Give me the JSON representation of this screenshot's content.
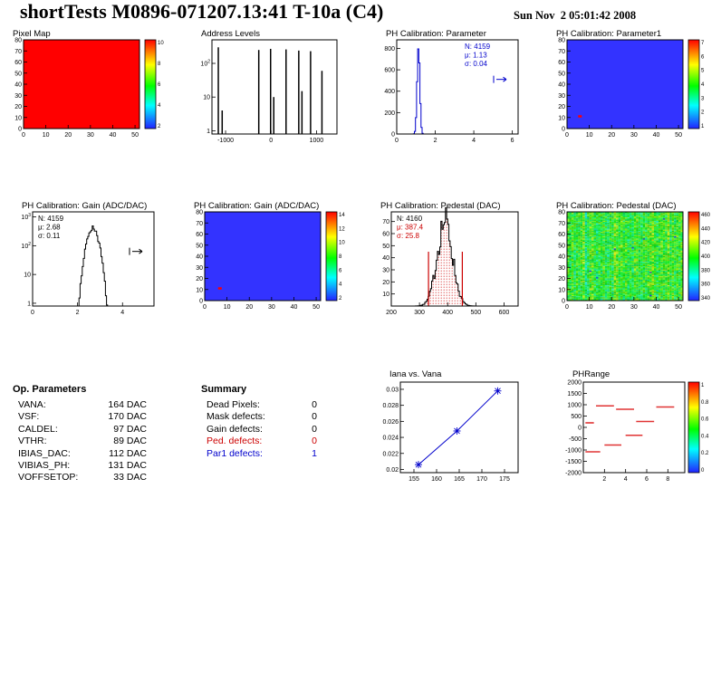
{
  "header": {
    "title": "shortTests M0896-071207.13:41 T-10a (C4)",
    "date": "Sun Nov  2 05:01:42 2008"
  },
  "op_parameters": {
    "heading": "Op. Parameters",
    "rows": [
      [
        "VANA:",
        "164 DAC"
      ],
      [
        "VSF:",
        "170 DAC"
      ],
      [
        "CALDEL:",
        "97 DAC"
      ],
      [
        "VTHR:",
        "89 DAC"
      ],
      [
        "IBIAS_DAC:",
        "112 DAC"
      ],
      [
        "VIBIAS_PH:",
        "131 DAC"
      ],
      [
        "VOFFSETOP:",
        "33 DAC"
      ]
    ]
  },
  "summary": {
    "heading": "Summary",
    "rows": [
      {
        "label": "Dead Pixels:",
        "value": "0",
        "color": "black"
      },
      {
        "label": "Mask defects:",
        "value": "0",
        "color": "black"
      },
      {
        "label": "Gain defects:",
        "value": "0",
        "color": "black"
      },
      {
        "label": "Ped. defects:",
        "value": "0",
        "color": "red"
      },
      {
        "label": "Par1 defects:",
        "value": "1",
        "color": "blue"
      }
    ]
  },
  "colors": {
    "accent_blue": "#0000cc",
    "accent_red": "#cc0000",
    "map_blue": "#3333ff",
    "map_red": "#ff0000"
  },
  "chart_data": [
    {
      "id": "pixel_map",
      "type": "heatmap",
      "title": "Pixel Map",
      "x_range": [
        0,
        52
      ],
      "y_range": [
        0,
        80
      ],
      "xticks": [
        0,
        10,
        20,
        30,
        40,
        50
      ],
      "yticks": [
        0,
        10,
        20,
        30,
        40,
        50,
        60,
        70,
        80
      ],
      "fill": "#ff0000",
      "colorbar": {
        "ticks": [
          "10",
          "8",
          "6",
          "4",
          "2"
        ]
      }
    },
    {
      "id": "address_levels",
      "type": "hist-spikes",
      "title": "Address Levels",
      "ylog": true,
      "y_max": 500,
      "x_range": [
        -1300,
        1450
      ],
      "xticks": [
        -1000,
        0,
        1000
      ],
      "ylabels": [
        {
          "v": 100,
          "t": "10",
          "e": "2"
        },
        {
          "v": 10,
          "t": "10"
        },
        {
          "v": 1,
          "t": "1"
        }
      ],
      "peaks": [
        [
          -1160,
          300
        ],
        [
          -1075,
          4
        ],
        [
          -270,
          250
        ],
        [
          -10,
          270
        ],
        [
          60,
          10
        ],
        [
          330,
          260
        ],
        [
          610,
          240
        ],
        [
          680,
          15
        ],
        [
          870,
          230
        ],
        [
          1120,
          60
        ]
      ]
    },
    {
      "id": "ph_parameter",
      "type": "hist",
      "title": "PH Calibration: Parameter",
      "color": "#0000cc",
      "x_range": [
        0,
        6.3
      ],
      "xticks": [
        0,
        2,
        4,
        6
      ],
      "y_range": [
        0,
        880
      ],
      "yticks": [
        0,
        200,
        400,
        600,
        800
      ],
      "gauss": {
        "mean": 1.13,
        "sigma": 0.07,
        "peak": 810
      },
      "stats": [
        {
          "text": "N: 4159",
          "color": "#0000cc"
        },
        {
          "text": "μ: 1.13",
          "color": "#0000cc"
        },
        {
          "text": "σ: 0.04",
          "color": "#0000cc"
        }
      ],
      "stats_pos": "right",
      "marker": {
        "symbol": "cut-arrow",
        "color": "#0000cc"
      }
    },
    {
      "id": "ph_parameter1_map",
      "type": "heatmap",
      "title": "PH Calibration: Parameter1",
      "x_range": [
        0,
        52
      ],
      "y_range": [
        0,
        80
      ],
      "xticks": [
        0,
        10,
        20,
        30,
        40,
        50
      ],
      "yticks": [
        0,
        10,
        20,
        30,
        40,
        50,
        60,
        70,
        80
      ],
      "fill": "#3333ff",
      "marks": [
        {
          "x": 5,
          "y": 10,
          "color": "#ff0000"
        }
      ],
      "colorbar": {
        "ticks": [
          "7",
          "6",
          "5",
          "4",
          "3",
          "2",
          "1"
        ]
      }
    },
    {
      "id": "gain_hist",
      "type": "hist",
      "title": "PH Calibration: Gain (ADC/DAC)",
      "color": "#000000",
      "ylog": true,
      "y_max": 1500,
      "x_range": [
        0,
        5.4
      ],
      "xticks": [
        0,
        2,
        4
      ],
      "ylabels": [
        {
          "v": 1000,
          "t": "10",
          "e": "3"
        },
        {
          "v": 100,
          "t": "10",
          "e": "2"
        },
        {
          "v": 10,
          "t": "10"
        },
        {
          "v": 1,
          "t": "1"
        }
      ],
      "gauss": {
        "mean": 2.68,
        "sigma": 0.18,
        "peak": 420,
        "jagged": true
      },
      "stats": [
        {
          "text": "N: 4159",
          "color": "#000000"
        },
        {
          "text": "μ: 2.68",
          "color": "#000000"
        },
        {
          "text": "σ: 0.11",
          "color": "#000000"
        }
      ],
      "stats_pos": "left",
      "marker": {
        "symbol": "cut-arrow",
        "color": "#000000"
      }
    },
    {
      "id": "gain_map",
      "type": "heatmap",
      "title": "PH Calibration: Gain (ADC/DAC)",
      "x_range": [
        0,
        52
      ],
      "y_range": [
        0,
        80
      ],
      "xticks": [
        0,
        10,
        20,
        30,
        40,
        50
      ],
      "yticks": [
        0,
        10,
        20,
        30,
        40,
        50,
        60,
        70,
        80
      ],
      "fill": "#3333ff",
      "marks": [
        {
          "x": 6,
          "y": 10,
          "color": "#ff0000"
        }
      ],
      "colorbar": {
        "ticks": [
          "14",
          "12",
          "10",
          "8",
          "6",
          "4",
          "2"
        ]
      }
    },
    {
      "id": "pedestal_hist",
      "type": "hist",
      "title": "PH Calibration: Pedestal (DAC)",
      "color": "#000000",
      "fill": "hatch-red",
      "x_range": [
        200,
        650
      ],
      "xticks": [
        200,
        300,
        400,
        500,
        600
      ],
      "y_range": [
        0,
        78
      ],
      "yticks": [
        10,
        20,
        30,
        40,
        50,
        60,
        70
      ],
      "gauss": {
        "mean": 390,
        "sigma": 27,
        "peak": 70,
        "jagged": true
      },
      "cut_lines": {
        "color": "#cc0000",
        "x": [
          332,
          452
        ],
        "height": 45
      },
      "stats": [
        {
          "text": "N: 4160",
          "color": "#000000"
        },
        {
          "text": "μ: 387.4",
          "color": "#cc0000"
        },
        {
          "text": "σ: 25.8",
          "color": "#cc0000"
        }
      ],
      "stats_pos": "left"
    },
    {
      "id": "pedestal_map",
      "type": "heatmap-noise",
      "title": "PH Calibration: Pedestal (DAC)",
      "x_range": [
        0,
        52
      ],
      "y_range": [
        0,
        80
      ],
      "xticks": [
        0,
        10,
        20,
        30,
        40,
        50
      ],
      "yticks": [
        0,
        10,
        20,
        30,
        40,
        50,
        60,
        70,
        80
      ],
      "palette": "green-noise",
      "colorbar": {
        "ticks": [
          "460",
          "440",
          "420",
          "400",
          "380",
          "360",
          "340"
        ]
      }
    },
    {
      "id": "iana_vs_vana",
      "type": "line",
      "title": "Iana vs. Vana",
      "color": "#0000cc",
      "x": [
        156,
        164.5,
        173.5
      ],
      "y": [
        0.0206,
        0.0248,
        0.0298
      ],
      "x_range": [
        152,
        178
      ],
      "xticks": [
        155,
        160,
        165,
        170,
        175
      ],
      "y_range": [
        0.0196,
        0.0309
      ],
      "yticks": [
        0.02,
        0.022,
        0.024,
        0.026,
        0.028,
        0.03
      ]
    },
    {
      "id": "phrange",
      "type": "segments",
      "title": "PHRange",
      "color": "#e03333",
      "x_range": [
        0,
        9.6
      ],
      "xticks": [
        2,
        4,
        6,
        8
      ],
      "y_range": [
        -2000,
        2000
      ],
      "yticks": [
        2000,
        1500,
        1000,
        500,
        0,
        -500,
        -1000,
        -1500,
        -2000
      ],
      "segments": [
        [
          0.2,
          1.0,
          200
        ],
        [
          1.2,
          2.9,
          950
        ],
        [
          3.1,
          4.8,
          800
        ],
        [
          5.0,
          6.7,
          260
        ],
        [
          6.9,
          8.6,
          900
        ],
        [
          0.2,
          1.6,
          -1080
        ],
        [
          2.0,
          3.6,
          -780
        ],
        [
          4.0,
          5.6,
          -350
        ]
      ],
      "colorbar": {
        "ticks": [
          "1",
          "0.8",
          "0.6",
          "0.4",
          "0.2",
          "0"
        ]
      }
    }
  ]
}
